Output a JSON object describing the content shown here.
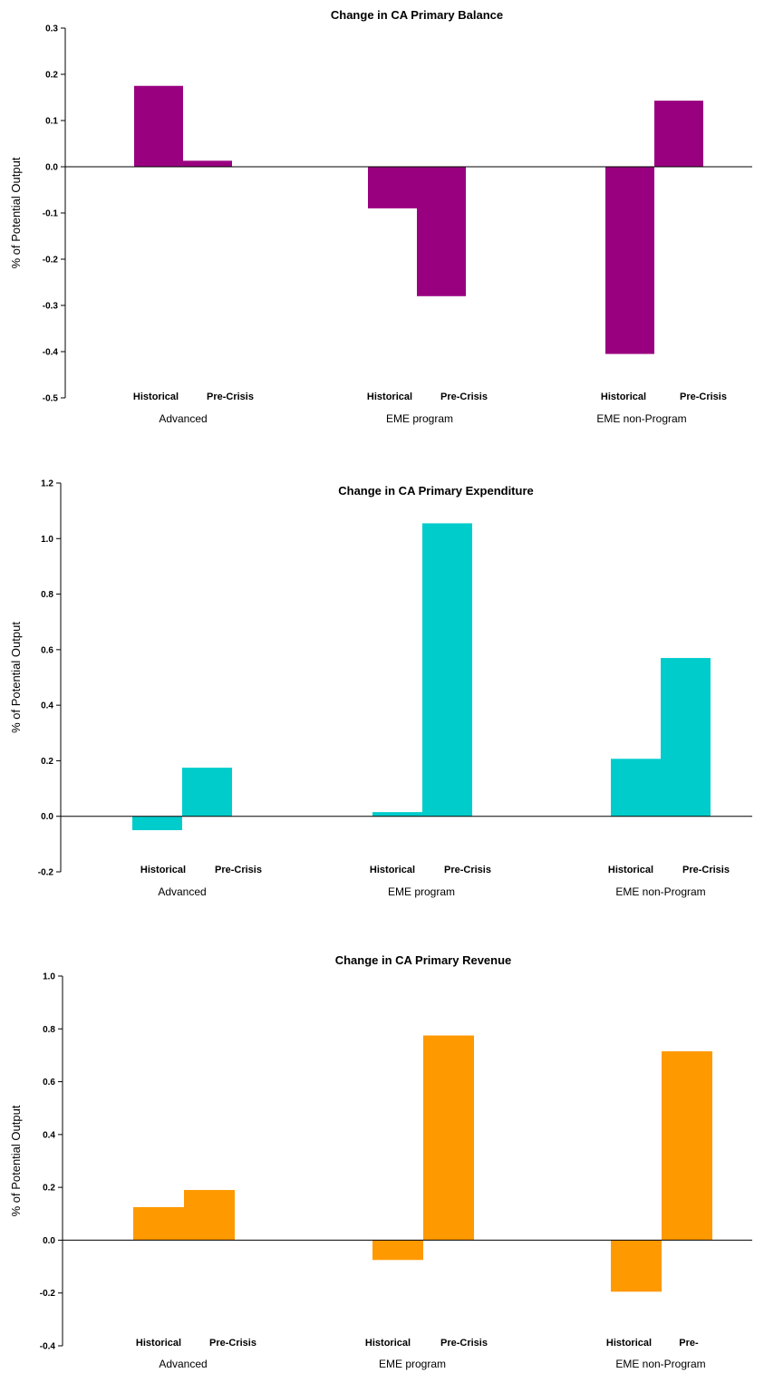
{
  "chart_data": [
    {
      "type": "bar",
      "title": "Change in CA Primary Balance",
      "ylabel": "% of Potential Output",
      "ylim": [
        -0.5,
        0.3
      ],
      "yticks": [
        "0.3",
        "0.2",
        "0.1",
        "0.0",
        "-0.1",
        "-0.2",
        "-0.3",
        "-0.4",
        "-0.5"
      ],
      "color": "#990080",
      "groups": [
        {
          "name": "Advanced",
          "bars": [
            {
              "label": "Historical",
              "value": 0.175
            },
            {
              "label": "Pre-Crisis",
              "value": 0.013
            }
          ]
        },
        {
          "name": "EME program",
          "bars": [
            {
              "label": "Historical",
              "value": -0.09
            },
            {
              "label": "Pre-Crisis",
              "value": -0.28
            }
          ]
        },
        {
          "name": "EME non-Program",
          "bars": [
            {
              "label": "Historical",
              "value": -0.405
            },
            {
              "label": "Pre-Crisis",
              "value": 0.143
            }
          ]
        }
      ]
    },
    {
      "type": "bar",
      "title": "Change in CA Primary Expenditure",
      "ylabel": "% of Potential Output",
      "ylim": [
        -0.2,
        1.2
      ],
      "yticks": [
        "1.2",
        "1.0",
        "0.8",
        "0.6",
        "0.4",
        "0.2",
        "0.0",
        "-0.2"
      ],
      "color": "#00CCCC",
      "groups": [
        {
          "name": "Advanced",
          "bars": [
            {
              "label": "Historical",
              "value": -0.05
            },
            {
              "label": "Pre-Crisis",
              "value": 0.175
            }
          ]
        },
        {
          "name": "EME program",
          "bars": [
            {
              "label": "Historical",
              "value": 0.015
            },
            {
              "label": "Pre-Crisis",
              "value": 1.055
            }
          ]
        },
        {
          "name": "EME non-Program",
          "bars": [
            {
              "label": "Historical",
              "value": 0.207
            },
            {
              "label": "Pre-Crisis",
              "value": 0.57
            }
          ]
        }
      ]
    },
    {
      "type": "bar",
      "title": "Change in CA Primary Revenue",
      "ylabel": "% of Potential Output",
      "ylim": [
        -0.4,
        1.0
      ],
      "yticks": [
        "1.0",
        "0.8",
        "0.6",
        "0.4",
        "0.2",
        "0.0",
        "-0.2",
        "-0.4"
      ],
      "color": "#FF9900",
      "groups": [
        {
          "name": "Advanced",
          "bars": [
            {
              "label": "Historical",
              "value": 0.125
            },
            {
              "label": "Pre-Crisis",
              "value": 0.19
            }
          ]
        },
        {
          "name": "EME program",
          "bars": [
            {
              "label": "Historical",
              "value": -0.075
            },
            {
              "label": "Pre-Crisis",
              "value": 0.775
            }
          ]
        },
        {
          "name": "EME non-Program",
          "bars": [
            {
              "label": "Historical",
              "value": -0.195
            },
            {
              "label": "Pre-Crisis",
              "value": 0.715
            }
          ]
        }
      ]
    }
  ]
}
